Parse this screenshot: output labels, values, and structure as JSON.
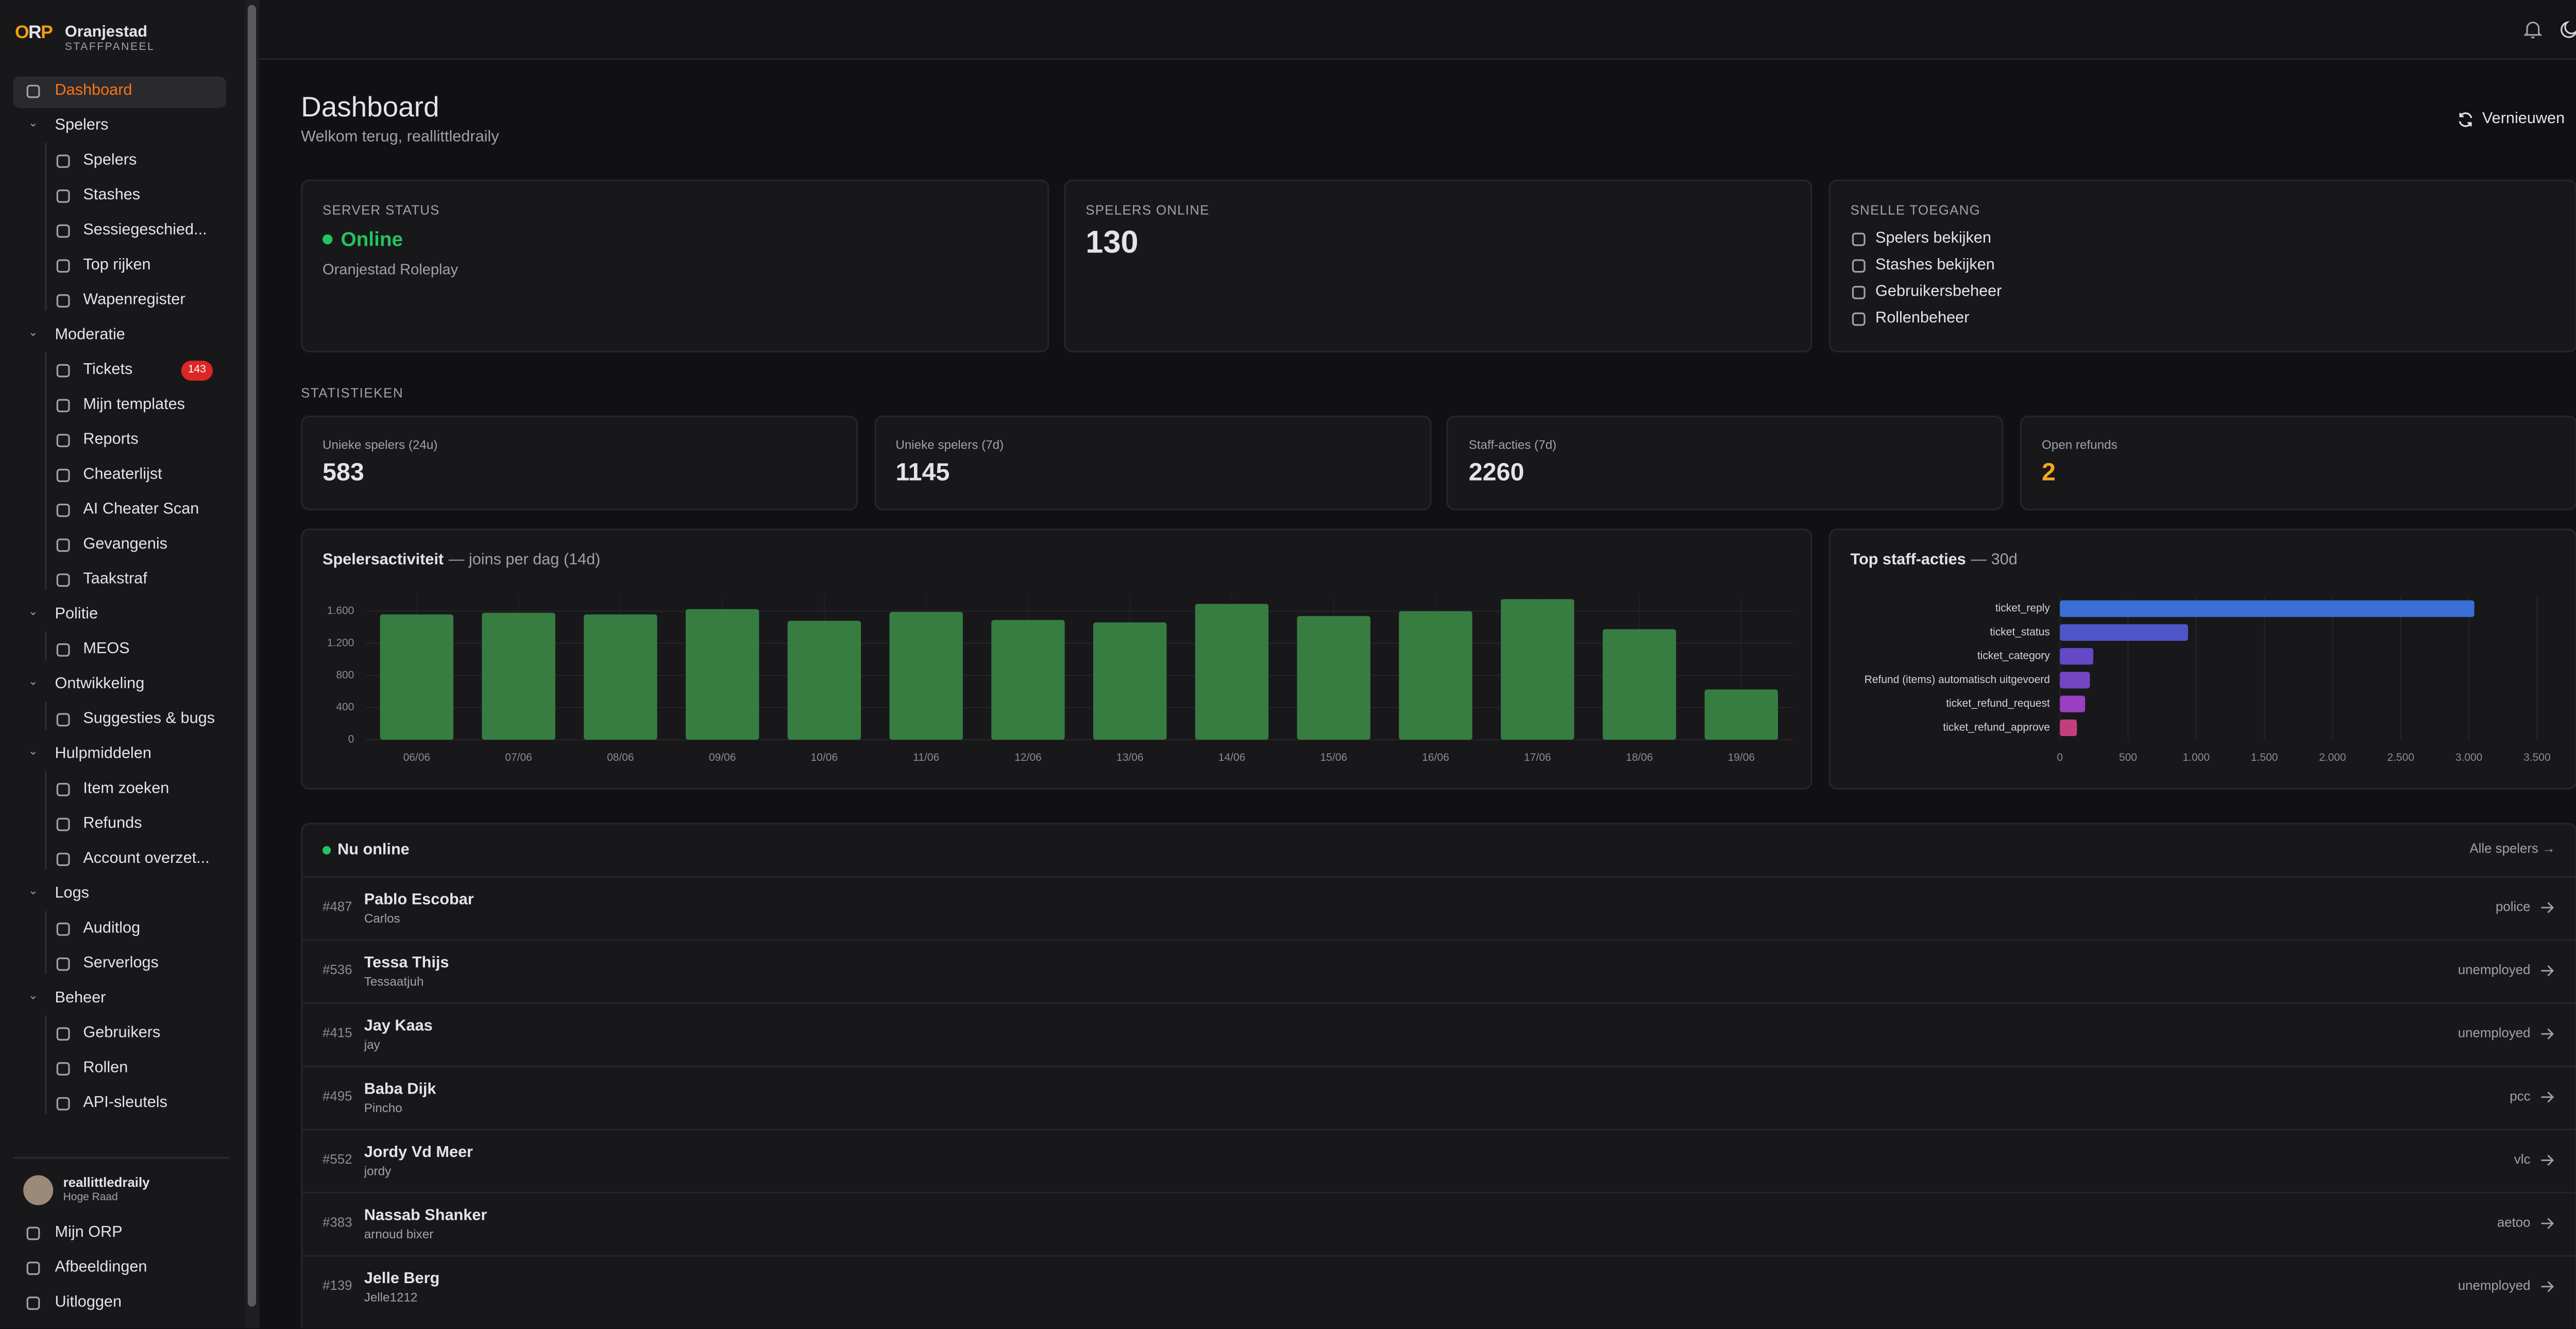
{
  "sidebar": {
    "brand": {
      "name": "Oranjestad",
      "subtitle": "STAFFPANEEL"
    },
    "nav": [
      {
        "label": "Dashboard",
        "active": true
      },
      {
        "label": "Spelers",
        "items": [
          {
            "label": "Spelers"
          },
          {
            "label": "Stashes"
          },
          {
            "label": "Sessiegeschied..."
          },
          {
            "label": "Top rijken"
          },
          {
            "label": "Wapenregister"
          }
        ]
      },
      {
        "label": "Moderatie",
        "items": [
          {
            "label": "Tickets",
            "badge": 143
          },
          {
            "label": "Mijn templates"
          },
          {
            "label": "Reports"
          },
          {
            "label": "Cheaterlijst"
          },
          {
            "label": "AI Cheater Scan"
          },
          {
            "label": "Gevangenis"
          },
          {
            "label": "Taakstraf"
          }
        ]
      },
      {
        "label": "Politie",
        "items": [
          {
            "label": "MEOS"
          }
        ]
      },
      {
        "label": "Ontwikkeling",
        "items": [
          {
            "label": "Suggesties & bugs"
          }
        ]
      },
      {
        "label": "Hulpmiddelen",
        "items": [
          {
            "label": "Item zoeken"
          },
          {
            "label": "Refunds"
          },
          {
            "label": "Account overzet..."
          }
        ]
      },
      {
        "label": "Logs",
        "items": [
          {
            "label": "Auditlog"
          },
          {
            "label": "Serverlogs"
          }
        ]
      },
      {
        "label": "Beheer",
        "items": [
          {
            "label": "Gebruikers"
          },
          {
            "label": "Rollen"
          },
          {
            "label": "API-sleutels"
          }
        ]
      }
    ],
    "user": {
      "name": "reallittledraily",
      "role": "Hoge Raad"
    },
    "footer_links": [
      "Mijn ORP",
      "Afbeeldingen",
      "Uitloggen"
    ]
  },
  "header": {
    "title": "Dashboard",
    "subtitle": "Welkom terug, reallittledraily",
    "refresh": "Vernieuwen"
  },
  "cards": {
    "server_status": {
      "label": "SERVER STATUS",
      "status": "Online",
      "name": "Oranjestad Roleplay"
    },
    "players_online": {
      "label": "SPELERS ONLINE",
      "value": 130
    },
    "quick_access": {
      "label": "SNELLE TOEGANG",
      "links": [
        "Spelers bekijken",
        "Stashes bekijken",
        "Gebruikersbeheer",
        "Rollenbeheer"
      ]
    }
  },
  "stats": {
    "label": "STATISTIEKEN",
    "items": [
      {
        "label": "Unieke spelers (24u)",
        "value": 583
      },
      {
        "label": "Unieke spelers (7d)",
        "value": 1145
      },
      {
        "label": "Staff-acties (7d)",
        "value": 2260
      },
      {
        "label": "Open refunds",
        "value": 2,
        "color": "#f5a524"
      }
    ]
  },
  "chart_data": [
    {
      "type": "bar",
      "orientation": "vertical",
      "title": "Spelersactiviteit",
      "subtitle": "— joins per dag (14d)",
      "categories": [
        "06/06",
        "07/06",
        "08/06",
        "09/06",
        "10/06",
        "11/06",
        "12/06",
        "13/06",
        "14/06",
        "15/06",
        "16/06",
        "17/06",
        "18/06",
        "19/06"
      ],
      "values": [
        1560,
        1580,
        1560,
        1625,
        1480,
        1590,
        1490,
        1460,
        1690,
        1540,
        1600,
        1750,
        1375,
        625
      ],
      "color": "#377d42",
      "ylim": [
        0,
        1800
      ],
      "yticks": [
        0,
        400,
        800,
        {
          "value": 1200,
          "label": "1.200"
        },
        {
          "value": 1600,
          "label": "1.600"
        }
      ],
      "grid": true
    },
    {
      "type": "bar",
      "orientation": "horizontal",
      "title": "Top staff-acties",
      "subtitle": "— 30d",
      "categories": [
        "ticket_reply",
        "ticket_status",
        "ticket_category",
        "Refund (items) automatisch uitgevoerd",
        "ticket_refund_request",
        "ticket_refund_approve"
      ],
      "values": [
        3040,
        940,
        245,
        220,
        185,
        125
      ],
      "colors": [
        "#3b6fd6",
        "#4d55c9",
        "#6448c6",
        "#7446c4",
        "#9a3fbf",
        "#c23f7e"
      ],
      "xlim": [
        0,
        3500
      ],
      "xticks": [
        0,
        500,
        {
          "value": 1000,
          "label": "1.000"
        },
        {
          "value": 1500,
          "label": "1.500"
        },
        {
          "value": 2000,
          "label": "2.000"
        },
        {
          "value": 2500,
          "label": "2.500"
        },
        {
          "value": 3000,
          "label": "3.000"
        },
        {
          "value": 3500,
          "label": "3.500"
        }
      ],
      "grid": true
    }
  ],
  "online": {
    "title": "Nu online",
    "link": "Alle spelers →",
    "players": [
      {
        "id": "#487",
        "name": "Pablo Escobar",
        "sub": "Carlos",
        "job": "police"
      },
      {
        "id": "#536",
        "name": "Tessa Thijs",
        "sub": "Tessaatjuh",
        "job": "unemployed"
      },
      {
        "id": "#415",
        "name": "Jay Kaas",
        "sub": "jay",
        "job": "unemployed"
      },
      {
        "id": "#495",
        "name": "Baba Dijk",
        "sub": "Pincho",
        "job": "pcc"
      },
      {
        "id": "#552",
        "name": "Jordy Vd Meer",
        "sub": "jordy",
        "job": "vlc"
      },
      {
        "id": "#383",
        "name": "Nassab Shanker",
        "sub": "arnoud bixer",
        "job": "aetoo"
      },
      {
        "id": "#139",
        "name": "Jelle Berg",
        "sub": "Jelle1212",
        "job": "unemployed"
      }
    ]
  }
}
